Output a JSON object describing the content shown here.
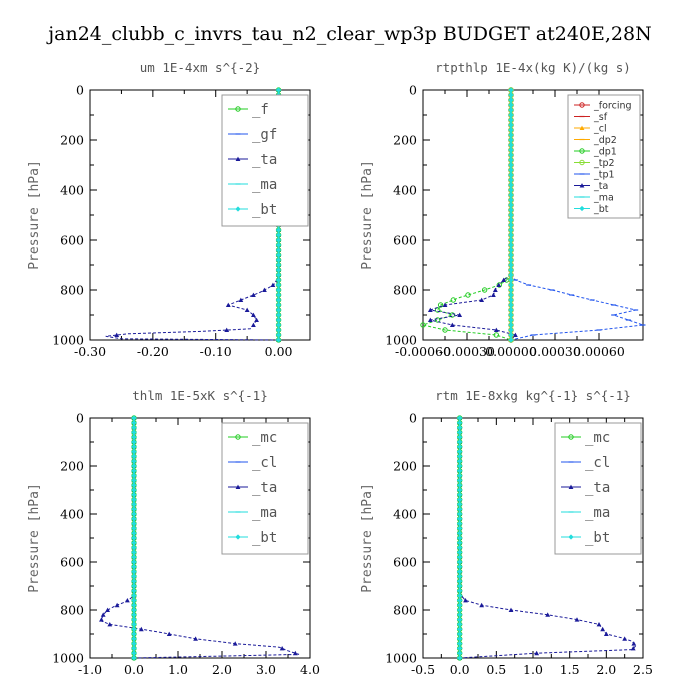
{
  "figure": {
    "suptitle": "jan24_clubb_c_invrs_tau_n2_clear_wp3p  BUDGET at240E,28N"
  },
  "colors": {
    "green": "#22cc22",
    "blue": "#2255ee",
    "dark_blue": "#1a1a99",
    "cyan": "#22dddd",
    "red": "#cc2222",
    "orange": "#ffaa00",
    "lime": "#88dd33"
  },
  "chart_data": [
    {
      "type": "line",
      "title": "um   1E-4xm  s^{-2}",
      "ylabel": "Pressure [hPa]",
      "xlim": [
        -0.3,
        0.05
      ],
      "ylim": [
        1000,
        0
      ],
      "xticks": [
        -0.3,
        -0.2,
        -0.1,
        0.0
      ],
      "xtick_labels": [
        "-0.30",
        "-0.20",
        "-0.10",
        "0.00"
      ],
      "yticks": [
        0,
        200,
        400,
        600,
        800,
        1000
      ],
      "ytick_labels": [
        "0",
        "200",
        "400",
        "600",
        "800",
        "1000"
      ],
      "legend": {
        "position": "top-right",
        "size": "large"
      },
      "series": [
        {
          "name": "_f",
          "color": "green",
          "marker": "circle",
          "x": [
            0,
            0
          ],
          "y": [
            0,
            1000
          ]
        },
        {
          "name": "_gf",
          "color": "blue",
          "marker": "dash",
          "x": [
            0,
            0
          ],
          "y": [
            0,
            1000
          ]
        },
        {
          "name": "_ta",
          "color": "dark_blue",
          "marker": "triangle",
          "x": [
            0,
            0,
            -0.003,
            -0.015,
            -0.03,
            -0.06,
            -0.08,
            -0.05,
            -0.04,
            -0.035,
            -0.04,
            -0.045,
            -0.12,
            -0.24,
            -0.275,
            -0.25,
            0
          ],
          "y": [
            0,
            740,
            770,
            790,
            810,
            840,
            860,
            880,
            900,
            920,
            940,
            955,
            965,
            975,
            985,
            995,
            1000
          ]
        },
        {
          "name": "_ma",
          "color": "cyan",
          "marker": "dash",
          "x": [
            0,
            0
          ],
          "y": [
            0,
            1000
          ]
        },
        {
          "name": "_bt",
          "color": "cyan",
          "marker": "diamond",
          "x": [
            0,
            0
          ],
          "y": [
            0,
            1000
          ]
        }
      ]
    },
    {
      "type": "line",
      "title": "rtpthlp   1E-4x(kg K)/(kg s)",
      "ylabel": "Pressure [hPa]",
      "xlim": [
        -0.0006,
        0.0009
      ],
      "ylim": [
        1000,
        0
      ],
      "xticks": [
        -0.0006,
        -0.0003,
        0.0,
        0.0003,
        0.0006
      ],
      "xtick_labels": [
        "-0.00060",
        "-0.00030",
        "0.00000",
        "0.00030",
        "0.00060"
      ],
      "yticks": [
        0,
        200,
        400,
        600,
        800,
        1000
      ],
      "ytick_labels": [
        "0",
        "200",
        "400",
        "600",
        "800",
        "1000"
      ],
      "legend": {
        "position": "top-right",
        "size": "small"
      },
      "series": [
        {
          "name": "_forcing",
          "color": "red",
          "marker": "circle",
          "x": [
            0,
            0
          ],
          "y": [
            0,
            1000
          ]
        },
        {
          "name": "_sf",
          "color": "red",
          "marker": "dash",
          "x": [
            0,
            0
          ],
          "y": [
            0,
            1000
          ]
        },
        {
          "name": "_cl",
          "color": "orange",
          "marker": "triangle",
          "x": [
            0,
            0
          ],
          "y": [
            0,
            1000
          ]
        },
        {
          "name": "_dp2",
          "color": "orange",
          "marker": "dash",
          "x": [
            0,
            0
          ],
          "y": [
            0,
            1000
          ]
        },
        {
          "name": "_dp1",
          "color": "green",
          "marker": "circle",
          "x": [
            0,
            0,
            -3e-05,
            -8e-05,
            -0.00018,
            -0.00035,
            -0.00048,
            -0.0005,
            -0.0004,
            -0.0005,
            -0.0006,
            -0.00045,
            -0.0001,
            0
          ],
          "y": [
            0,
            740,
            760,
            780,
            800,
            830,
            860,
            880,
            900,
            920,
            940,
            960,
            980,
            1000
          ]
        },
        {
          "name": "_tp2",
          "color": "lime",
          "marker": "circle",
          "x": [
            0,
            0
          ],
          "y": [
            0,
            1000
          ]
        },
        {
          "name": "_tp1",
          "color": "blue",
          "marker": "dash",
          "x": [
            0,
            0,
            3e-05,
            0.00012,
            0.00028,
            0.00048,
            0.0007,
            0.00085,
            0.0007,
            0.0008,
            0.0009,
            0.0006,
            0.00015,
            0
          ],
          "y": [
            0,
            740,
            760,
            780,
            800,
            830,
            860,
            880,
            900,
            920,
            940,
            960,
            980,
            1000
          ]
        },
        {
          "name": "_ta",
          "color": "dark_blue",
          "marker": "triangle",
          "x": [
            0,
            0,
            -5e-05,
            -0.0001,
            -0.00012,
            -0.0002,
            -0.00045,
            -0.00055,
            -0.00035,
            -0.00055,
            -0.0004,
            -0.0001,
            3e-05,
            0
          ],
          "y": [
            0,
            740,
            760,
            790,
            820,
            840,
            860,
            880,
            900,
            920,
            940,
            960,
            980,
            1000
          ]
        },
        {
          "name": "_ma",
          "color": "cyan",
          "marker": "dash",
          "x": [
            0,
            0
          ],
          "y": [
            0,
            1000
          ]
        },
        {
          "name": "_bt",
          "color": "cyan",
          "marker": "diamond",
          "x": [
            0,
            0
          ],
          "y": [
            0,
            1000
          ]
        }
      ]
    },
    {
      "type": "line",
      "title": "thlm   1E-5xK  s^{-1}",
      "ylabel": "Pressure [hPa]",
      "xlim": [
        -1.0,
        4.0
      ],
      "ylim": [
        1000,
        0
      ],
      "xticks": [
        -1.0,
        0.0,
        1.0,
        2.0,
        3.0,
        4.0
      ],
      "xtick_labels": [
        "-1.0",
        "0.0",
        "1.0",
        "2.0",
        "3.0",
        "4.0"
      ],
      "yticks": [
        0,
        200,
        400,
        600,
        800,
        1000
      ],
      "ytick_labels": [
        "0",
        "200",
        "400",
        "600",
        "800",
        "1000"
      ],
      "legend": {
        "position": "top-right",
        "size": "large"
      },
      "series": [
        {
          "name": "_mc",
          "color": "green",
          "marker": "circle",
          "x": [
            0,
            0
          ],
          "y": [
            0,
            1000
          ]
        },
        {
          "name": "_cl",
          "color": "blue",
          "marker": "dash",
          "x": [
            0,
            0
          ],
          "y": [
            0,
            1000
          ]
        },
        {
          "name": "_ta",
          "color": "dark_blue",
          "marker": "triangle",
          "x": [
            0,
            0,
            -0.1,
            -0.25,
            -0.45,
            -0.6,
            -0.7,
            -0.75,
            -0.55,
            0,
            0.5,
            0.8,
            1.4,
            2.3,
            3.3,
            3.5,
            3.75,
            0
          ],
          "y": [
            0,
            740,
            755,
            770,
            785,
            800,
            820,
            845,
            860,
            875,
            890,
            900,
            920,
            940,
            955,
            970,
            985,
            1000
          ]
        },
        {
          "name": "_ma",
          "color": "cyan",
          "marker": "dash",
          "x": [
            0,
            0
          ],
          "y": [
            0,
            1000
          ]
        },
        {
          "name": "_bt",
          "color": "cyan",
          "marker": "diamond",
          "x": [
            0,
            0
          ],
          "y": [
            0,
            1000
          ]
        }
      ]
    },
    {
      "type": "line",
      "title": "rtm   1E-8xkg  kg^{-1}  s^{-1}",
      "ylabel": "Pressure [hPa]",
      "xlim": [
        -0.5,
        2.5
      ],
      "ylim": [
        1000,
        0
      ],
      "xticks": [
        -0.5,
        0.0,
        0.5,
        1.0,
        1.5,
        2.0,
        2.5
      ],
      "xtick_labels": [
        "-0.5",
        "0.0",
        "0.5",
        "1.0",
        "1.5",
        "2.0",
        "2.5"
      ],
      "yticks": [
        0,
        200,
        400,
        600,
        800,
        1000
      ],
      "ytick_labels": [
        "0",
        "200",
        "400",
        "600",
        "800",
        "1000"
      ],
      "legend": {
        "position": "top-right",
        "size": "large"
      },
      "series": [
        {
          "name": "_mc",
          "color": "green",
          "marker": "circle",
          "x": [
            0,
            0
          ],
          "y": [
            0,
            1000
          ]
        },
        {
          "name": "_cl",
          "color": "blue",
          "marker": "dash",
          "x": [
            0,
            0
          ],
          "y": [
            0,
            1000
          ]
        },
        {
          "name": "_ta",
          "color": "dark_blue",
          "marker": "triangle",
          "x": [
            0,
            0,
            0.02,
            0.08,
            0.3,
            0.7,
            1.2,
            1.6,
            1.9,
            1.95,
            2.0,
            2.2,
            2.35,
            2.4,
            2.35,
            1.05,
            0
          ],
          "y": [
            0,
            720,
            740,
            760,
            780,
            800,
            820,
            840,
            860,
            880,
            900,
            915,
            930,
            950,
            965,
            980,
            1000
          ]
        },
        {
          "name": "_ma",
          "color": "cyan",
          "marker": "dash",
          "x": [
            0,
            0
          ],
          "y": [
            0,
            1000
          ]
        },
        {
          "name": "_bt",
          "color": "cyan",
          "marker": "diamond",
          "x": [
            0,
            0
          ],
          "y": [
            0,
            1000
          ]
        }
      ]
    }
  ]
}
